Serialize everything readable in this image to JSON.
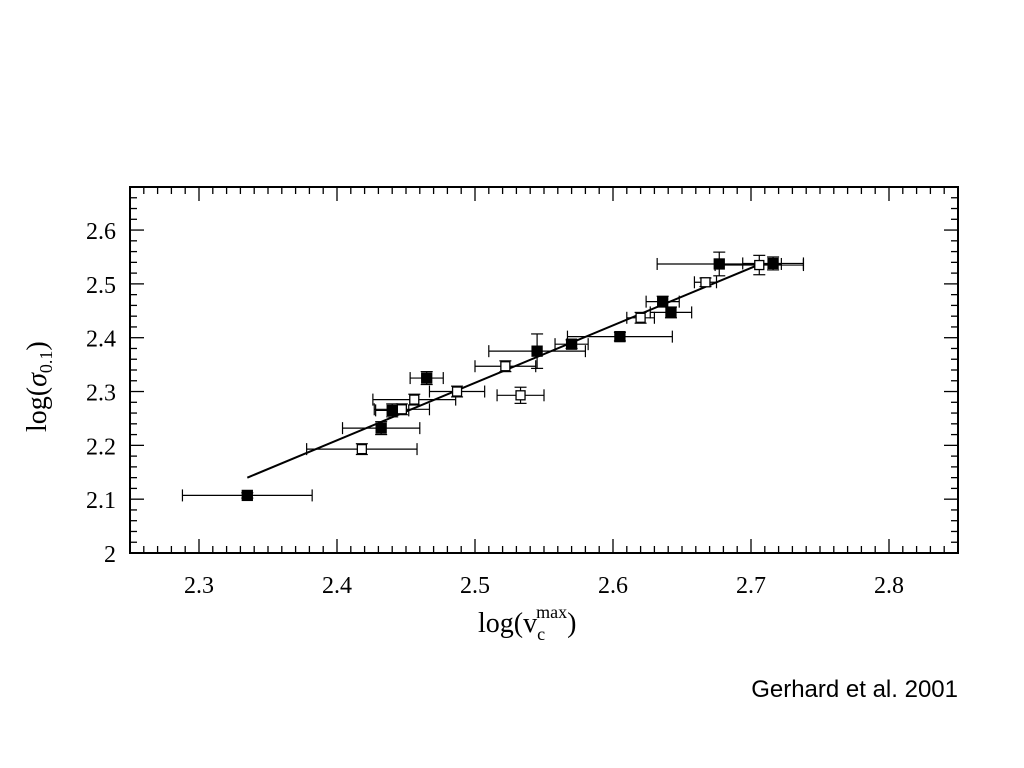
{
  "citation": "Gerhard et al. 2001",
  "chart_data": {
    "type": "scatter",
    "title": "",
    "xlabel": {
      "main": "log(v",
      "sub": "c",
      "sup": "max",
      "close": ")"
    },
    "ylabel": {
      "main": "log(",
      "greek": "σ",
      "sub": "0.1",
      "close": ")"
    },
    "xlim": [
      2.25,
      2.85
    ],
    "ylim": [
      2.0,
      2.68
    ],
    "x_ticks": [
      "2.3",
      "2.4",
      "2.5",
      "2.6",
      "2.7",
      "2.8"
    ],
    "y_ticks": [
      "2",
      "2.1",
      "2.2",
      "2.3",
      "2.4",
      "2.5",
      "2.6"
    ],
    "grid": false,
    "fit_line": {
      "x": [
        2.335,
        2.705
      ],
      "y": [
        2.14,
        2.535
      ]
    },
    "series": [
      {
        "marker": "filled-square",
        "points": [
          {
            "x": 2.335,
            "y": 2.107,
            "xerr": [
              0.047,
              0.047
            ],
            "yerr": [
              0.005,
              0.005
            ]
          },
          {
            "x": 2.432,
            "y": 2.232,
            "xerr": [
              0.028,
              0.028
            ],
            "yerr": [
              0.012,
              0.012
            ]
          },
          {
            "x": 2.44,
            "y": 2.265,
            "xerr": [
              0.012,
              0.012
            ],
            "yerr": [
              0.012,
              0.012
            ]
          },
          {
            "x": 2.465,
            "y": 2.325,
            "xerr": [
              0.012,
              0.012
            ],
            "yerr": [
              0.012,
              0.012
            ]
          },
          {
            "x": 2.545,
            "y": 2.375,
            "xerr": [
              0.035,
              0.035
            ],
            "yerr": [
              0.032,
              0.032
            ]
          },
          {
            "x": 2.57,
            "y": 2.388,
            "xerr": [
              0.012,
              0.012
            ],
            "yerr": [
              0.008,
              0.008
            ]
          },
          {
            "x": 2.605,
            "y": 2.402,
            "xerr": [
              0.038,
              0.038
            ],
            "yerr": [
              0.008,
              0.008
            ]
          },
          {
            "x": 2.636,
            "y": 2.467,
            "xerr": [
              0.012,
              0.012
            ],
            "yerr": [
              0.01,
              0.01
            ]
          },
          {
            "x": 2.642,
            "y": 2.447,
            "xerr": [
              0.015,
              0.015
            ],
            "yerr": [
              0.01,
              0.01
            ]
          },
          {
            "x": 2.677,
            "y": 2.537,
            "xerr": [
              0.045,
              0.045
            ],
            "yerr": [
              0.022,
              0.022
            ]
          },
          {
            "x": 2.716,
            "y": 2.538,
            "xerr": [
              0.022,
              0.022
            ],
            "yerr": [
              0.012,
              0.012
            ]
          }
        ]
      },
      {
        "marker": "open-square",
        "points": [
          {
            "x": 2.418,
            "y": 2.193,
            "xerr": [
              0.04,
              0.04
            ],
            "yerr": [
              0.01,
              0.01
            ]
          },
          {
            "x": 2.447,
            "y": 2.267,
            "xerr": [
              0.02,
              0.02
            ],
            "yerr": [
              0.01,
              0.01
            ]
          },
          {
            "x": 2.456,
            "y": 2.285,
            "xerr": [
              0.03,
              0.03
            ],
            "yerr": [
              0.01,
              0.01
            ]
          },
          {
            "x": 2.487,
            "y": 2.3,
            "xerr": [
              0.02,
              0.02
            ],
            "yerr": [
              0.01,
              0.01
            ]
          },
          {
            "x": 2.522,
            "y": 2.347,
            "xerr": [
              0.022,
              0.022
            ],
            "yerr": [
              0.01,
              0.01
            ]
          },
          {
            "x": 2.533,
            "y": 2.293,
            "xerr": [
              0.017,
              0.017
            ],
            "yerr": [
              0.015,
              0.015
            ]
          },
          {
            "x": 2.62,
            "y": 2.437,
            "xerr": [
              0.01,
              0.01
            ],
            "yerr": [
              0.01,
              0.01
            ]
          },
          {
            "x": 2.667,
            "y": 2.503,
            "xerr": [
              0.008,
              0.008
            ],
            "yerr": [
              0.008,
              0.008
            ]
          },
          {
            "x": 2.706,
            "y": 2.535,
            "xerr": [
              0.032,
              0.032
            ],
            "yerr": [
              0.018,
              0.018
            ]
          }
        ]
      }
    ]
  }
}
